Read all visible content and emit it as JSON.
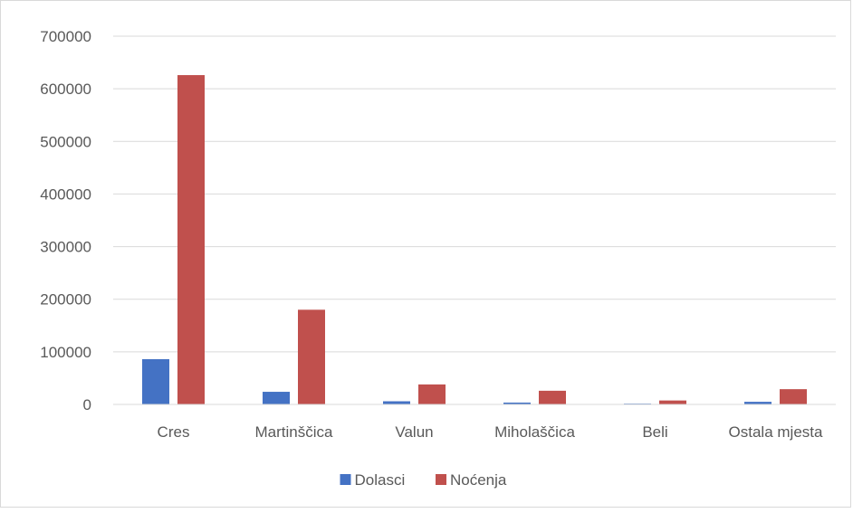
{
  "chart_data": {
    "type": "bar",
    "categories": [
      "Cres",
      "Martinščica",
      "Valun",
      "Miholaščica",
      "Beli",
      "Ostala mjesta"
    ],
    "series": [
      {
        "name": "Dolasci",
        "color": "#4472c4",
        "values": [
          86000,
          24000,
          6000,
          3500,
          1500,
          5000
        ]
      },
      {
        "name": "Noćenja",
        "color": "#c0504d",
        "values": [
          626000,
          180000,
          38000,
          26000,
          7500,
          29000
        ]
      }
    ],
    "ylim": [
      0,
      700000
    ],
    "yticks": [
      "0",
      "100000",
      "200000",
      "300000",
      "400000",
      "500000",
      "600000",
      "700000"
    ],
    "title": "",
    "xlabel": "",
    "ylabel": "",
    "grid": true,
    "legend": "bottom",
    "gridline_color": "#d9d9d9",
    "text_color": "#595959"
  }
}
